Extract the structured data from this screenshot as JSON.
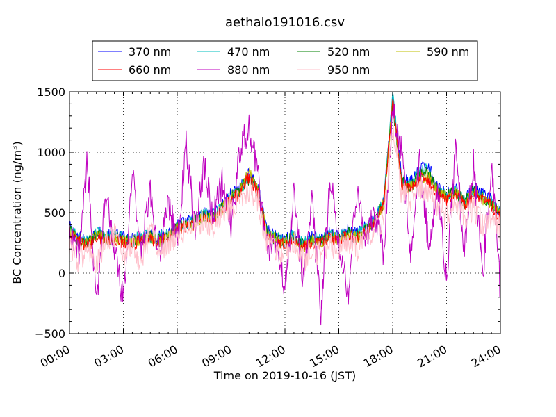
{
  "chart_data": {
    "type": "line",
    "title": "aethalo191016.csv",
    "xlabel": "Time on 2019-10-16 (JST)",
    "ylabel": "BC Concentration (ng/m³)",
    "ylim": [
      -500,
      1500
    ],
    "xlim": [
      "00:00",
      "24:00"
    ],
    "y_ticks": [
      "1500",
      "1000",
      "500",
      "0",
      "−500"
    ],
    "x_ticks": [
      "00:00",
      "03:00",
      "06:00",
      "09:00",
      "12:00",
      "15:00",
      "18:00",
      "21:00",
      "24:00"
    ],
    "grid": true,
    "legend_position": "top",
    "x_hours": [
      0,
      0.5,
      1,
      1.5,
      2,
      2.5,
      3,
      3.5,
      4,
      4.5,
      5,
      5.5,
      6,
      6.5,
      7,
      7.5,
      8,
      8.5,
      9,
      9.5,
      10,
      10.5,
      11,
      11.5,
      12,
      12.5,
      13,
      13.5,
      14,
      14.5,
      15,
      15.5,
      16,
      16.5,
      17,
      17.5,
      18,
      18.5,
      19,
      19.5,
      20,
      20.5,
      21,
      21.5,
      22,
      22.5,
      23,
      23.5,
      24
    ],
    "series": [
      {
        "name": "370 nm",
        "color": "#0000ff",
        "values": [
          380,
          300,
          250,
          350,
          300,
          320,
          300,
          280,
          310,
          320,
          300,
          330,
          400,
          420,
          450,
          500,
          480,
          560,
          650,
          700,
          820,
          700,
          350,
          300,
          280,
          320,
          250,
          300,
          280,
          330,
          300,
          350,
          320,
          380,
          450,
          600,
          1450,
          800,
          750,
          850,
          900,
          700,
          650,
          700,
          600,
          700,
          650,
          600,
          500
        ]
      },
      {
        "name": "470 nm",
        "color": "#00bfbf",
        "values": [
          360,
          290,
          260,
          340,
          290,
          310,
          290,
          270,
          300,
          310,
          290,
          320,
          390,
          410,
          440,
          490,
          470,
          550,
          640,
          690,
          800,
          690,
          340,
          290,
          270,
          310,
          240,
          290,
          270,
          320,
          290,
          340,
          310,
          370,
          440,
          590,
          1480,
          780,
          730,
          830,
          860,
          690,
          640,
          690,
          590,
          690,
          640,
          590,
          490
        ]
      },
      {
        "name": "520 nm",
        "color": "#008000",
        "values": [
          350,
          280,
          240,
          330,
          280,
          300,
          280,
          260,
          290,
          300,
          280,
          310,
          380,
          400,
          430,
          480,
          460,
          540,
          630,
          680,
          790,
          680,
          330,
          280,
          260,
          300,
          230,
          280,
          260,
          310,
          280,
          330,
          300,
          360,
          430,
          580,
          1400,
          760,
          710,
          810,
          820,
          680,
          630,
          680,
          580,
          680,
          630,
          580,
          480
        ]
      },
      {
        "name": "590 nm",
        "color": "#bfbf00",
        "values": [
          340,
          270,
          230,
          320,
          270,
          290,
          270,
          250,
          280,
          290,
          270,
          300,
          370,
          390,
          420,
          470,
          450,
          530,
          620,
          670,
          840,
          670,
          320,
          270,
          250,
          290,
          220,
          270,
          250,
          300,
          270,
          320,
          290,
          350,
          420,
          570,
          1420,
          740,
          700,
          800,
          800,
          670,
          620,
          670,
          570,
          670,
          620,
          570,
          470
        ]
      },
      {
        "name": "660 nm",
        "color": "#ff0000",
        "values": [
          330,
          260,
          220,
          310,
          260,
          280,
          260,
          240,
          270,
          280,
          260,
          290,
          360,
          380,
          410,
          460,
          440,
          520,
          610,
          660,
          800,
          660,
          310,
          260,
          240,
          280,
          210,
          260,
          240,
          290,
          260,
          310,
          280,
          340,
          410,
          560,
          1440,
          730,
          690,
          780,
          760,
          660,
          610,
          660,
          560,
          660,
          610,
          560,
          460
        ]
      },
      {
        "name": "880 nm",
        "color": "#bf00bf",
        "values": [
          300,
          150,
          950,
          -300,
          700,
          200,
          -250,
          850,
          200,
          700,
          150,
          600,
          250,
          1050,
          350,
          900,
          450,
          750,
          400,
          1000,
          1220,
          800,
          200,
          250,
          -150,
          700,
          -100,
          600,
          -350,
          800,
          300,
          -200,
          700,
          250,
          500,
          150,
          1340,
          1000,
          150,
          900,
          250,
          700,
          -50,
          1000,
          200,
          950,
          -50,
          900,
          -150
        ]
      },
      {
        "name": "950 nm",
        "color": "#ffc0cb",
        "values": [
          250,
          100,
          200,
          50,
          250,
          300,
          150,
          250,
          100,
          350,
          200,
          250,
          300,
          350,
          400,
          450,
          400,
          500,
          550,
          600,
          700,
          600,
          250,
          200,
          150,
          250,
          100,
          200,
          150,
          250,
          200,
          250,
          200,
          300,
          350,
          450,
          1200,
          650,
          600,
          700,
          650,
          550,
          450,
          600,
          450,
          550,
          400,
          450,
          350
        ]
      }
    ]
  }
}
